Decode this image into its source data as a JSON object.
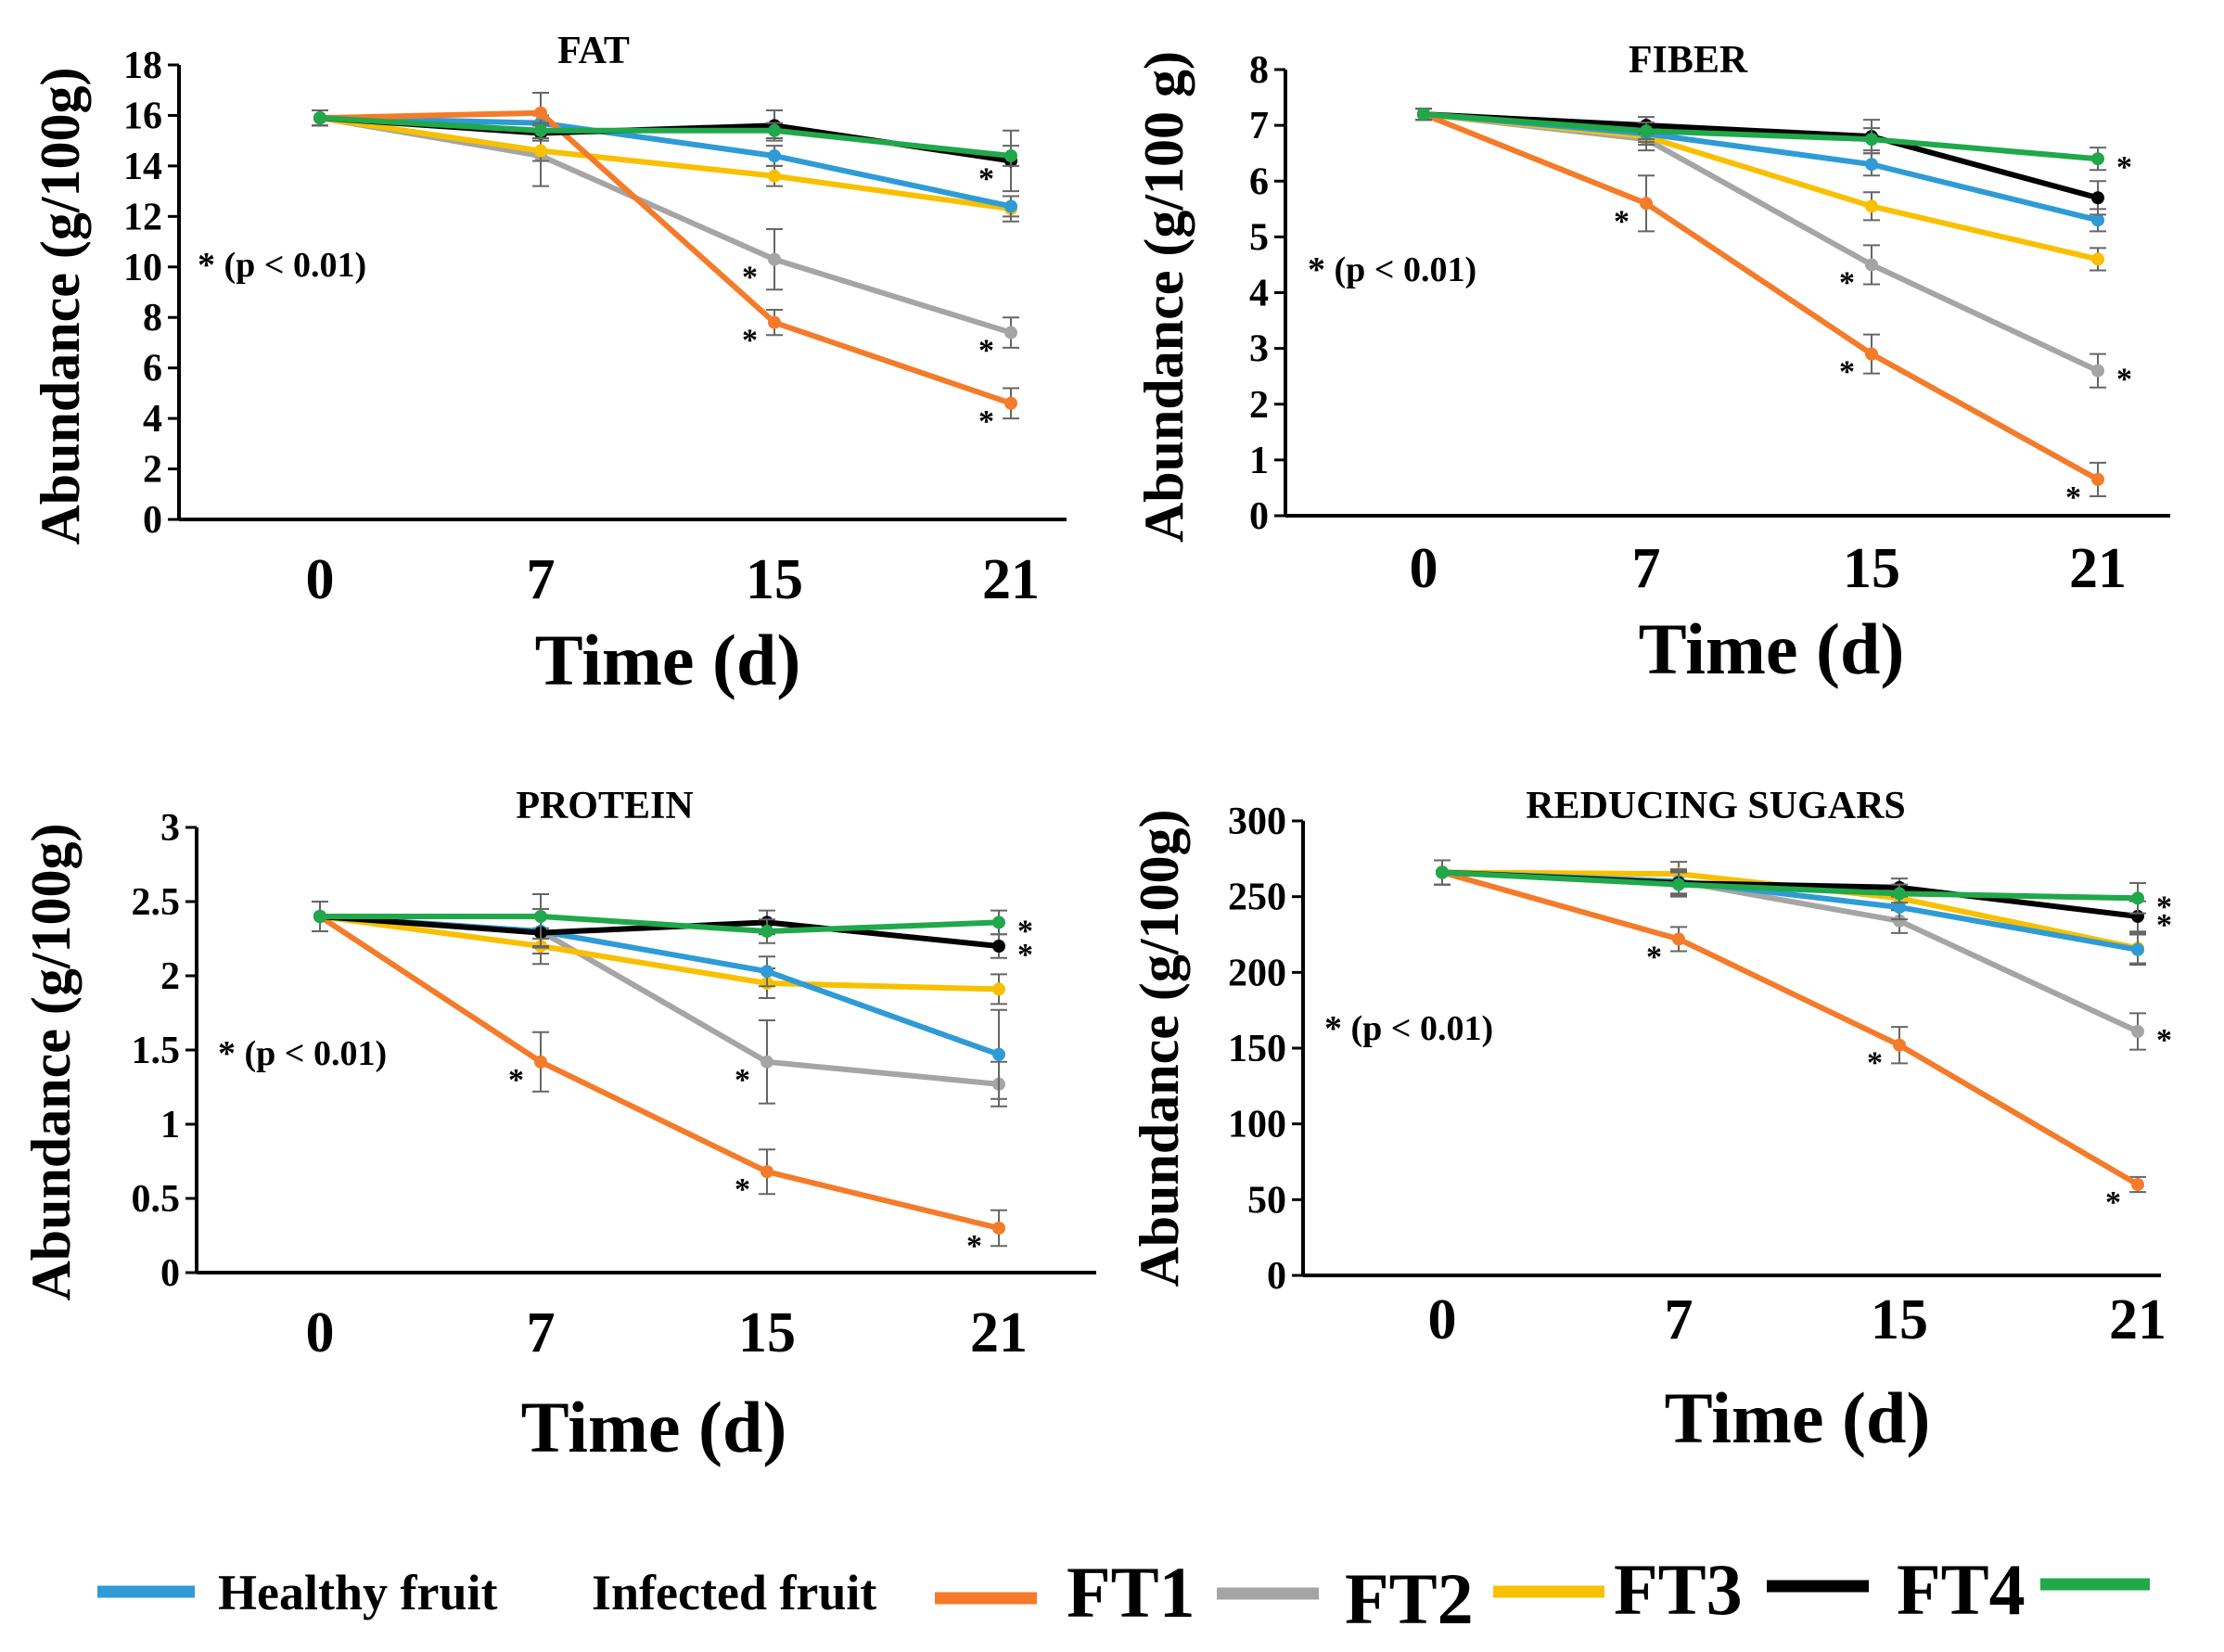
{
  "colors": {
    "Healthy fruit": "#2e9bd6",
    "Infected fruit": "#f47b2a",
    "FT1": "#a5a5a5",
    "FT2": "#f8c000",
    "FT3": "#000000",
    "FT4": "#20a84a"
  },
  "legend": {
    "entries": [
      {
        "label": "Healthy fruit",
        "color": "#2e9bd6"
      },
      {
        "label": "Infected fruit",
        "color": "#f47b2a"
      },
      {
        "label": "FT1",
        "color": "#a5a5a5"
      },
      {
        "label": "FT2",
        "color": "#f8c000"
      },
      {
        "label": "FT3",
        "color": "#000000"
      },
      {
        "label": "FT4",
        "color": "#20a84a"
      }
    ]
  },
  "chart_data": [
    {
      "type": "line",
      "title": "FAT",
      "xlabel": "Time (d)",
      "ylabel": "Abundance (g/100g)",
      "annotation": "* (p < 0.01)",
      "categories": [
        "0",
        "7",
        "15",
        "21"
      ],
      "yticks": [
        0,
        2,
        4,
        6,
        8,
        10,
        12,
        14,
        16,
        18
      ],
      "ylim": [
        0,
        18
      ],
      "series": [
        {
          "name": "Healthy fruit",
          "values": [
            15.9,
            15.7,
            14.4,
            12.4
          ],
          "err": [
            0.3,
            0.3,
            0.4,
            0.4
          ]
        },
        {
          "name": "Infected fruit",
          "values": [
            15.9,
            16.1,
            7.8,
            4.6
          ],
          "err": [
            0.3,
            0.8,
            0.5,
            0.6
          ]
        },
        {
          "name": "FT1",
          "values": [
            15.9,
            14.4,
            10.3,
            7.4
          ],
          "err": [
            0.3,
            1.2,
            1.2,
            0.6
          ]
        },
        {
          "name": "FT2",
          "values": [
            15.9,
            14.6,
            13.6,
            12.3
          ],
          "err": [
            0.3,
            0.4,
            0.4,
            0.5
          ]
        },
        {
          "name": "FT3",
          "values": [
            15.9,
            15.3,
            15.6,
            14.2
          ],
          "err": [
            0.3,
            0.3,
            0.6,
            1.2
          ]
        },
        {
          "name": "FT4",
          "values": [
            15.9,
            15.4,
            15.4,
            14.4
          ],
          "err": [
            0.3,
            0.3,
            0.3,
            0.4
          ]
        }
      ],
      "stars": [
        {
          "series": "Infected fruit",
          "index": 2,
          "text": "*"
        },
        {
          "series": "Infected fruit",
          "index": 3,
          "text": "*"
        },
        {
          "series": "FT1",
          "index": 2,
          "text": "*"
        },
        {
          "series": "FT1",
          "index": 3,
          "text": "*"
        },
        {
          "series": "FT3",
          "index": 3,
          "text": "*"
        }
      ]
    },
    {
      "type": "line",
      "title": "FIBER",
      "xlabel": "Time (d)",
      "ylabel": "Abundance (g/100 g)",
      "annotation": "* (p < 0.01)",
      "categories": [
        "0",
        "7",
        "15",
        "21"
      ],
      "yticks": [
        0,
        1,
        2,
        3,
        4,
        5,
        6,
        7,
        8
      ],
      "ylim": [
        0,
        8
      ],
      "series": [
        {
          "name": "Healthy fruit",
          "values": [
            7.2,
            6.85,
            6.3,
            5.3
          ],
          "err": [
            0.1,
            0.15,
            0.2,
            0.2
          ]
        },
        {
          "name": "Infected fruit",
          "values": [
            7.2,
            5.6,
            2.9,
            0.65
          ],
          "err": [
            0.1,
            0.5,
            0.35,
            0.3
          ]
        },
        {
          "name": "FT1",
          "values": [
            7.2,
            6.75,
            4.5,
            2.6
          ],
          "err": [
            0.1,
            0.2,
            0.35,
            0.3
          ]
        },
        {
          "name": "FT2",
          "values": [
            7.2,
            6.8,
            5.55,
            4.6
          ],
          "err": [
            0.1,
            0.15,
            0.25,
            0.2
          ]
        },
        {
          "name": "FT3",
          "values": [
            7.2,
            7.0,
            6.8,
            5.7
          ],
          "err": [
            0.1,
            0.15,
            0.3,
            0.3
          ]
        },
        {
          "name": "FT4",
          "values": [
            7.2,
            6.9,
            6.75,
            6.4
          ],
          "err": [
            0.1,
            0.15,
            0.2,
            0.2
          ]
        }
      ],
      "stars": [
        {
          "series": "Infected fruit",
          "index": 1,
          "text": "*"
        },
        {
          "series": "Infected fruit",
          "index": 2,
          "text": "*"
        },
        {
          "series": "Infected fruit",
          "index": 3,
          "text": "*"
        },
        {
          "series": "FT1",
          "index": 2,
          "text": "*"
        },
        {
          "series": "FT1",
          "index": 3,
          "text": "*"
        },
        {
          "series": "FT4",
          "index": 3,
          "text": "*"
        }
      ]
    },
    {
      "type": "line",
      "title": "PROTEIN",
      "xlabel": "Time (d)",
      "ylabel": "Abundance (g/100g)",
      "annotation": "* (p < 0.01)",
      "categories": [
        "0",
        "7",
        "15",
        "21"
      ],
      "yticks": [
        0,
        0.5,
        1,
        1.5,
        2,
        2.5,
        3
      ],
      "ylim": [
        0,
        3
      ],
      "series": [
        {
          "name": "Healthy fruit",
          "values": [
            2.4,
            2.3,
            2.03,
            1.47
          ],
          "err": [
            0.1,
            0.1,
            0.1,
            0.3
          ]
        },
        {
          "name": "Infected fruit",
          "values": [
            2.4,
            1.42,
            0.68,
            0.3
          ],
          "err": [
            0.1,
            0.2,
            0.15,
            0.12
          ]
        },
        {
          "name": "FT1",
          "values": [
            2.4,
            2.3,
            1.42,
            1.27
          ],
          "err": [
            0.1,
            0.15,
            0.28,
            0.15
          ]
        },
        {
          "name": "FT2",
          "values": [
            2.4,
            2.2,
            1.95,
            1.91
          ],
          "err": [
            0.1,
            0.12,
            0.1,
            0.1
          ]
        },
        {
          "name": "FT3",
          "values": [
            2.4,
            2.29,
            2.36,
            2.2
          ],
          "err": [
            0.1,
            0.1,
            0.08,
            0.08
          ]
        },
        {
          "name": "FT4",
          "values": [
            2.4,
            2.4,
            2.3,
            2.36
          ],
          "err": [
            0.1,
            0.15,
            0.08,
            0.08
          ]
        }
      ],
      "stars": [
        {
          "series": "Infected fruit",
          "index": 1,
          "text": "*"
        },
        {
          "series": "Infected fruit",
          "index": 2,
          "text": "*"
        },
        {
          "series": "Infected fruit",
          "index": 3,
          "text": "*"
        },
        {
          "series": "FT1",
          "index": 2,
          "text": "*"
        },
        {
          "series": "FT3",
          "index": 3,
          "text": "*"
        },
        {
          "series": "FT4",
          "index": 3,
          "text": "*"
        }
      ]
    },
    {
      "type": "line",
      "title": "REDUCING  SUGARS",
      "xlabel": "Time (d)",
      "ylabel": "Abundance (g/100g)",
      "annotation": "* (p < 0.01)",
      "categories": [
        "0",
        "7",
        "15",
        "21"
      ],
      "yticks": [
        0,
        50,
        100,
        150,
        200,
        250,
        300
      ],
      "ylim": [
        0,
        300
      ],
      "series": [
        {
          "name": "Healthy fruit",
          "values": [
            266,
            260,
            243,
            215
          ],
          "err": [
            8,
            8,
            8,
            10
          ]
        },
        {
          "name": "Infected fruit",
          "values": [
            266,
            222,
            152,
            60
          ],
          "err": [
            8,
            8,
            12,
            5
          ]
        },
        {
          "name": "FT1",
          "values": [
            266,
            260,
            234,
            161
          ],
          "err": [
            8,
            8,
            8,
            12
          ]
        },
        {
          "name": "FT2",
          "values": [
            266,
            265,
            249,
            216
          ],
          "err": [
            8,
            8,
            8,
            10
          ]
        },
        {
          "name": "FT3",
          "values": [
            266,
            259,
            256,
            237
          ],
          "err": [
            8,
            8,
            6,
            10
          ]
        },
        {
          "name": "FT4",
          "values": [
            266,
            258,
            252,
            249
          ],
          "err": [
            8,
            8,
            6,
            10
          ]
        }
      ],
      "stars": [
        {
          "series": "Infected fruit",
          "index": 1,
          "text": "*"
        },
        {
          "series": "Infected fruit",
          "index": 2,
          "text": "*"
        },
        {
          "series": "Infected fruit",
          "index": 3,
          "text": "*"
        },
        {
          "series": "FT1",
          "index": 3,
          "text": "*"
        },
        {
          "series": "FT3",
          "index": 3,
          "text": "*"
        },
        {
          "series": "FT4",
          "index": 3,
          "text": "*"
        }
      ]
    }
  ]
}
